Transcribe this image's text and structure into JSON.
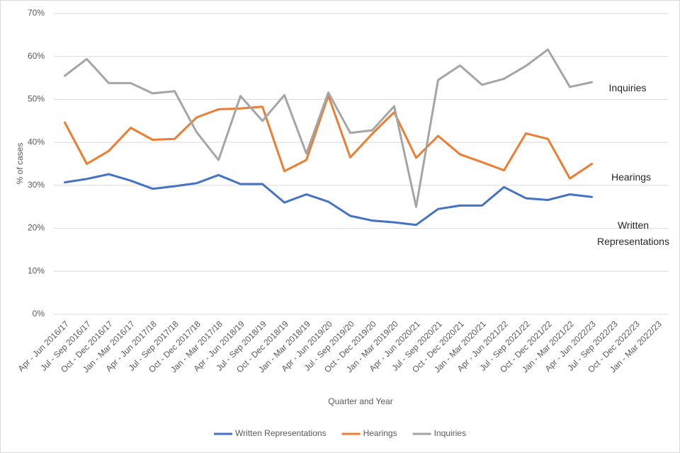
{
  "chart_data": {
    "type": "line",
    "x_label": "Quarter and Year",
    "y_label": "% of cases",
    "categories": [
      "Apr - Jun 2016/17",
      "Jul - Sep 2016/17",
      "Oct - Dec 2016/17",
      "Jan - Mar 2016/17",
      "Apr - Jun 2017/18",
      "Jul - Sep 2017/18",
      "Oct - Dec 2017/18",
      "Jan - Mar 2017/18",
      "Apr - Jun 2018/19",
      "Jul - Sep 2018/19",
      "Oct - Dec 2018/19",
      "Jan - Mar 2018/19",
      "Apr - Jun 2019/20",
      "Jul - Sep 2019/20",
      "Oct - Dec 2019/20",
      "Jan - Mar 2019/20",
      "Apr - Jun 2020/21",
      "Jul - Sep 2020/21",
      "Oct - Dec 2020/21",
      "Jan - Mar 2020/21",
      "Apr - Jun 2021/22",
      "Jul - Sep 2021/22",
      "Oct - Dec 2021/22",
      "Jan - Mar 2021/22",
      "Apr - Jun 2022/23",
      "Jul - Sep 2022/23",
      "Oct - Dec 2022/23",
      "Jan - Mar 2022/23"
    ],
    "series": [
      {
        "name": "Written Representations",
        "color": "#4472c4",
        "values": [
          30.7,
          31.5,
          32.6,
          31.1,
          29.2,
          29.8,
          30.5,
          32.4,
          30.3,
          30.3,
          26.0,
          27.9,
          26.2,
          22.9,
          21.8,
          21.4,
          20.8,
          24.5,
          25.3,
          25.3,
          29.6,
          27.0,
          26.6,
          27.9,
          27.3,
          null,
          null,
          null
        ]
      },
      {
        "name": "Hearings",
        "color": "#ed7d31",
        "values": [
          44.6,
          35.0,
          38.0,
          43.4,
          40.6,
          40.8,
          45.8,
          47.7,
          47.9,
          48.3,
          33.3,
          35.9,
          50.9,
          36.5,
          42.0,
          47.0,
          36.4,
          41.5,
          37.2,
          35.4,
          33.5,
          42.1,
          40.8,
          31.6,
          35.0,
          null,
          null,
          null
        ]
      },
      {
        "name": "Inquiries",
        "color": "#a5a5a5",
        "values": [
          55.5,
          59.4,
          53.8,
          53.8,
          51.4,
          51.9,
          42.4,
          35.9,
          50.8,
          45.0,
          51.0,
          37.4,
          51.6,
          42.2,
          42.8,
          48.4,
          25.0,
          54.5,
          57.9,
          53.4,
          54.8,
          57.8,
          61.6,
          52.9,
          54.0,
          null,
          null,
          null
        ]
      }
    ],
    "ylim": [
      0,
      70
    ],
    "yticks": [
      {
        "value": 0,
        "label": "0%"
      },
      {
        "value": 10,
        "label": "10%"
      },
      {
        "value": 20,
        "label": "20%"
      },
      {
        "value": 30,
        "label": "30%"
      },
      {
        "value": 40,
        "label": "40%"
      },
      {
        "value": 50,
        "label": "50%"
      },
      {
        "value": 60,
        "label": "60%"
      },
      {
        "value": 70,
        "label": "70%"
      }
    ],
    "grid": true,
    "legend": "bottom",
    "annotations": [
      "Inquiries",
      "Hearings",
      "Written Representations"
    ]
  }
}
